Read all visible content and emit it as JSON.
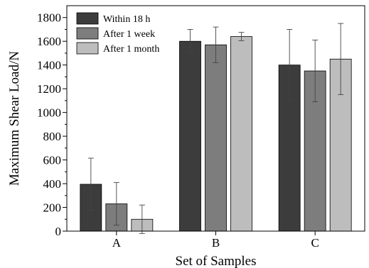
{
  "chart_data": {
    "type": "bar",
    "categories": [
      "A",
      "B",
      "C"
    ],
    "series": [
      {
        "name": "Within 18 h",
        "color": "#3c3c3c",
        "values": [
          395,
          1600,
          1400
        ],
        "errors": [
          220,
          100,
          300
        ]
      },
      {
        "name": "After 1 week",
        "color": "#7d7d7d",
        "values": [
          230,
          1570,
          1350
        ],
        "errors": [
          180,
          150,
          260
        ]
      },
      {
        "name": "After 1 month",
        "color": "#bdbdbd",
        "values": [
          100,
          1640,
          1450
        ],
        "errors": [
          120,
          35,
          300
        ]
      }
    ],
    "xlabel": "Set of Samples",
    "ylabel": "Maximum Shear Load/N",
    "ylim": [
      0,
      1900
    ],
    "yticks": [
      0,
      200,
      400,
      600,
      800,
      1000,
      1200,
      1400,
      1600,
      1800
    ],
    "legend_position": "top-left",
    "grid": false,
    "error_bars": true
  }
}
